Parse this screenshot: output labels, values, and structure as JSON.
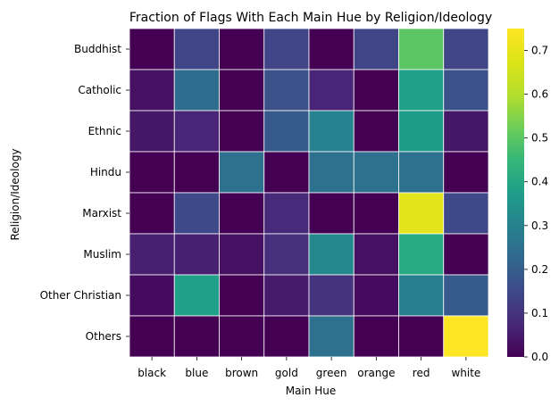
{
  "chart_data": {
    "type": "heatmap",
    "title": "Fraction of Flags With Each Main Hue by Religion/Ideology",
    "xlabel": "Main Hue",
    "ylabel": "Religion/Ideology",
    "x_categories": [
      "black",
      "blue",
      "brown",
      "gold",
      "green",
      "orange",
      "red",
      "white"
    ],
    "y_categories": [
      "Buddhist",
      "Catholic",
      "Ethnic",
      "Hindu",
      "Marxist",
      "Muslim",
      "Other Christian",
      "Others"
    ],
    "values": [
      [
        0.0,
        0.14,
        0.0,
        0.14,
        0.0,
        0.14,
        0.5,
        0.14
      ],
      [
        0.03,
        0.24,
        0.0,
        0.17,
        0.07,
        0.0,
        0.38,
        0.17
      ],
      [
        0.04,
        0.07,
        0.0,
        0.19,
        0.3,
        0.0,
        0.37,
        0.04
      ],
      [
        0.0,
        0.0,
        0.25,
        0.0,
        0.25,
        0.25,
        0.25,
        0.0
      ],
      [
        0.0,
        0.15,
        0.0,
        0.08,
        0.0,
        0.0,
        0.69,
        0.15
      ],
      [
        0.06,
        0.06,
        0.03,
        0.09,
        0.32,
        0.03,
        0.41,
        0.0
      ],
      [
        0.02,
        0.38,
        0.0,
        0.05,
        0.1,
        0.02,
        0.29,
        0.19
      ],
      [
        0.0,
        0.0,
        0.0,
        0.0,
        0.25,
        0.0,
        0.0,
        0.75
      ]
    ],
    "colormap": "viridis",
    "vmin": 0.0,
    "vmax": 0.75,
    "colorbar_ticks": [
      0.0,
      0.1,
      0.2,
      0.3,
      0.4,
      0.5,
      0.6,
      0.7
    ],
    "colorbar_tick_labels": [
      "0.0",
      "0.1",
      "0.2",
      "0.3",
      "0.4",
      "0.5",
      "0.6",
      "0.7"
    ],
    "cell_border_color": "#ffffff"
  }
}
